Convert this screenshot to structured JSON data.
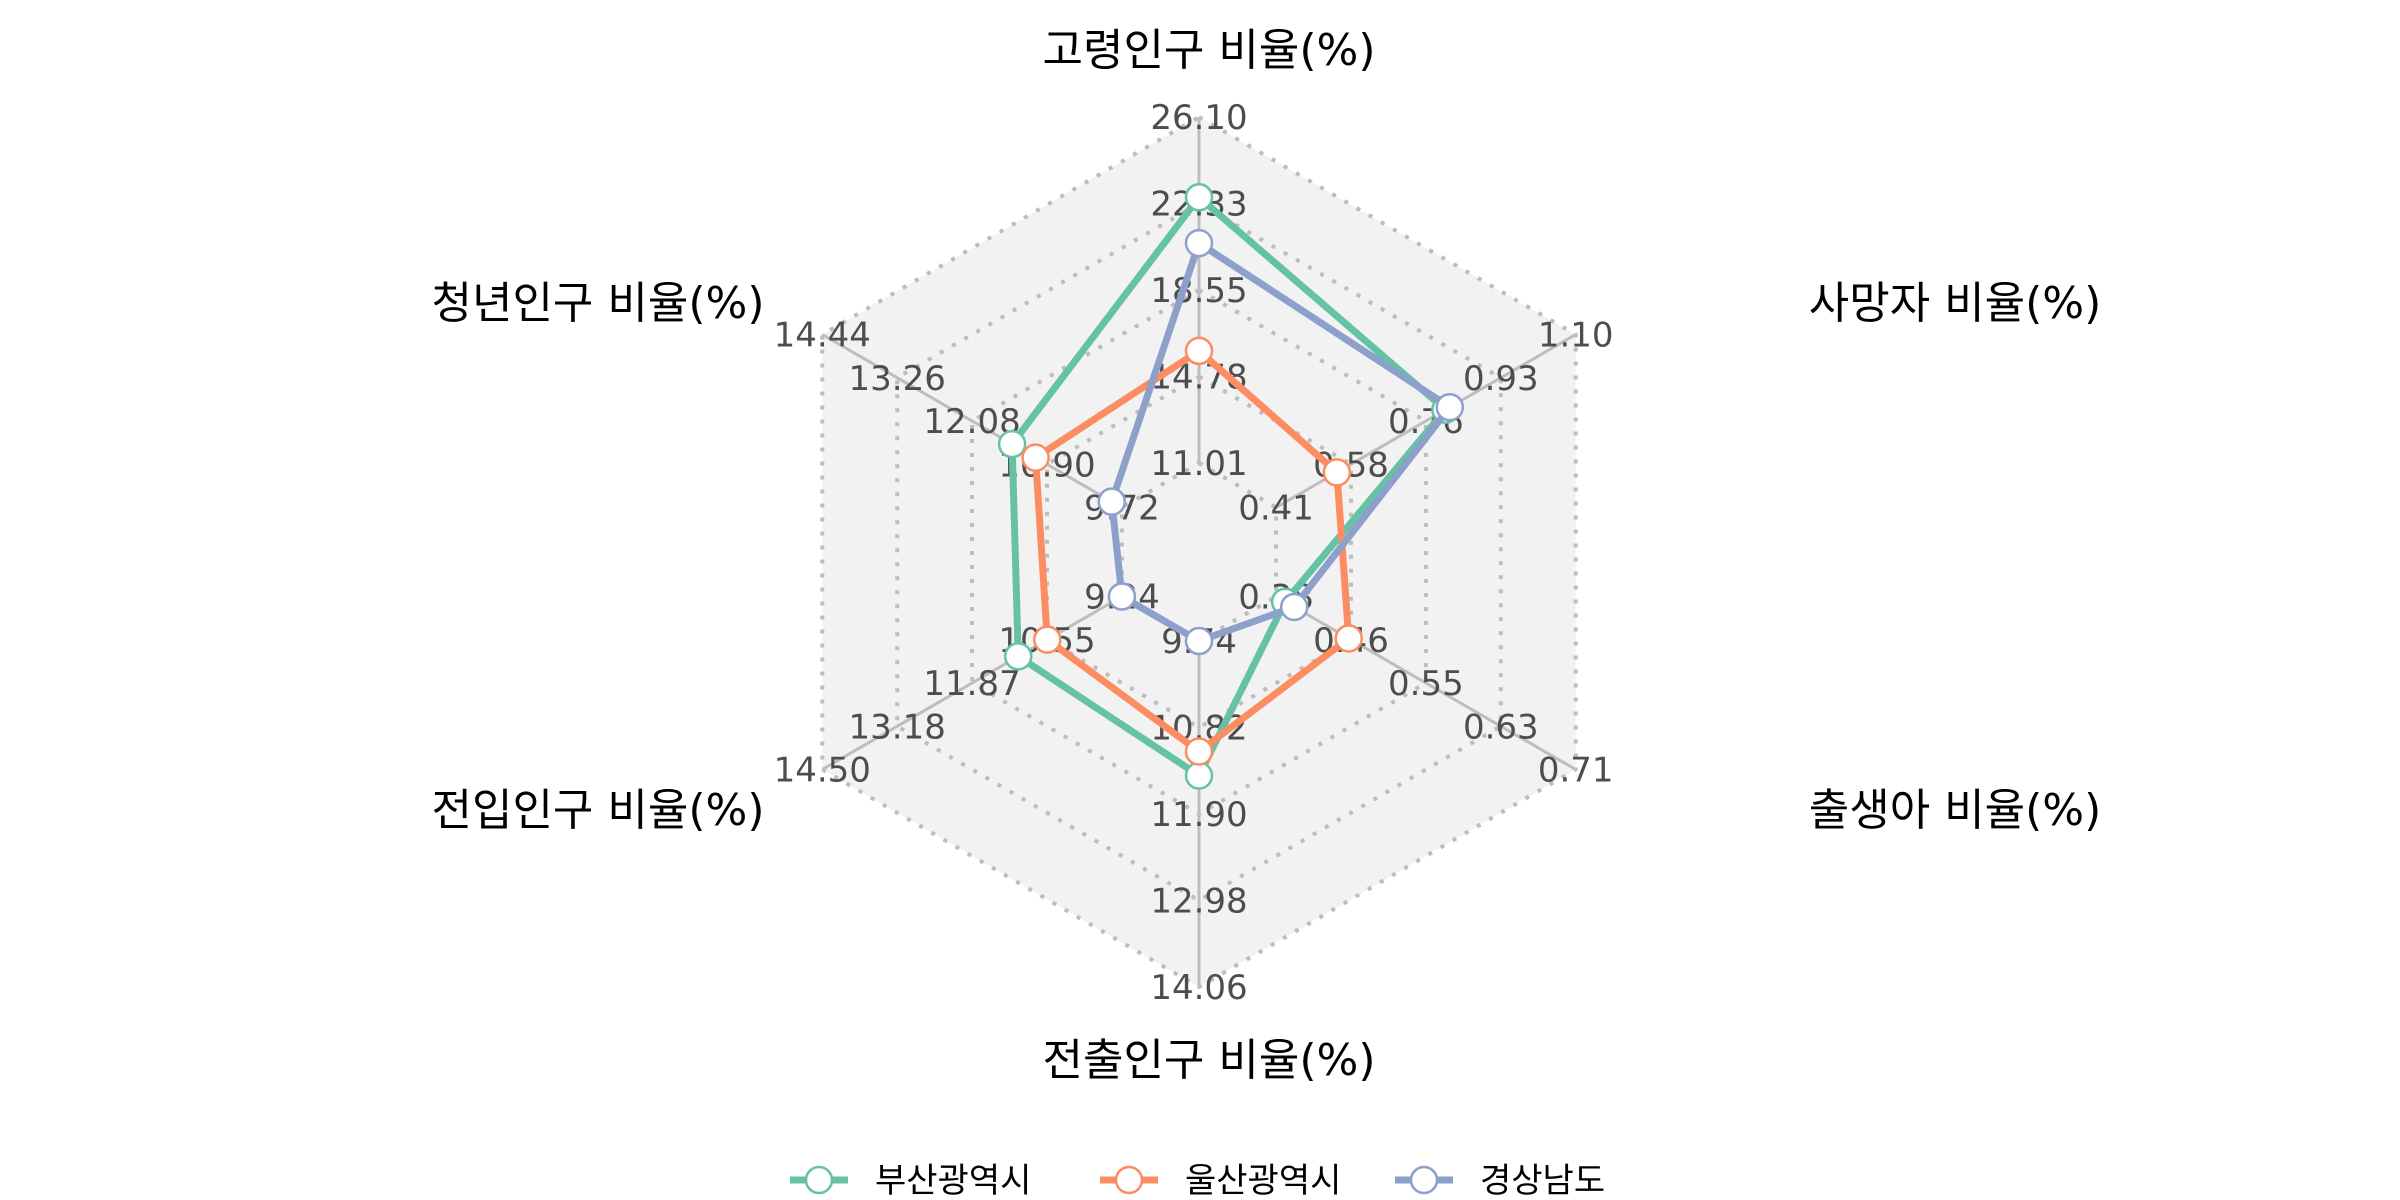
{
  "chart_data": {
    "type": "radar",
    "title": "",
    "axes": [
      {
        "label": "고령인구 비율(%)",
        "ticks": [
          "11.01",
          "14.78",
          "18.55",
          "22.33",
          "26.10"
        ],
        "min": 11.01,
        "max": 26.1
      },
      {
        "label": "사망자 비율(%)",
        "ticks": [
          "0.41",
          "0.58",
          "0.76",
          "0.93",
          "1.10"
        ],
        "min": 0.41,
        "max": 1.1
      },
      {
        "label": "출생아 비율(%)",
        "ticks": [
          "0.38",
          "0.46",
          "0.55",
          "0.63",
          "0.71"
        ],
        "min": 0.38,
        "max": 0.71
      },
      {
        "label": "전출인구 비율(%)",
        "ticks": [
          "9.74",
          "10.82",
          "11.90",
          "12.98",
          "14.06"
        ],
        "min": 9.74,
        "max": 14.06
      },
      {
        "label": "전입인구 비율(%)",
        "ticks": [
          "9.24",
          "10.55",
          "11.87",
          "13.18",
          "14.50"
        ],
        "min": 9.24,
        "max": 14.5
      },
      {
        "label": "청년인구 비율(%)",
        "ticks": [
          "9.72",
          "10.90",
          "12.08",
          "13.26",
          "14.44"
        ],
        "min": 9.72,
        "max": 14.44
      }
    ],
    "categories": [
      "고령인구 비율(%)",
      "사망자 비율(%)",
      "출생아 비율(%)",
      "전출인구 비율(%)",
      "전입인구 비율(%)",
      "청년인구 비율(%)"
    ],
    "series": [
      {
        "name": "부산광역시",
        "color": "#66c2a5",
        "values": [
          22.6,
          0.8,
          0.39,
          11.42,
          11.06,
          11.45
        ]
      },
      {
        "name": "울산광역시",
        "color": "#fc8d62",
        "values": [
          15.9,
          0.55,
          0.46,
          11.12,
          10.55,
          11.08
        ]
      },
      {
        "name": "경상남도",
        "color": "#8da0cb",
        "values": [
          20.6,
          0.81,
          0.4,
          9.74,
          9.24,
          9.88
        ]
      }
    ],
    "grid": "dotted hexagonal rings",
    "legend_position": "bottom"
  },
  "legend": {
    "items": [
      {
        "label": "부산광역시",
        "color": "#66c2a5"
      },
      {
        "label": "울산광역시",
        "color": "#fc8d62"
      },
      {
        "label": "경상남도",
        "color": "#8da0cb"
      }
    ]
  },
  "style": {
    "panel_fill": "#f2f2f2",
    "grid_color": "#bdbdbd",
    "axis_line_color": "#bdbdbd"
  }
}
